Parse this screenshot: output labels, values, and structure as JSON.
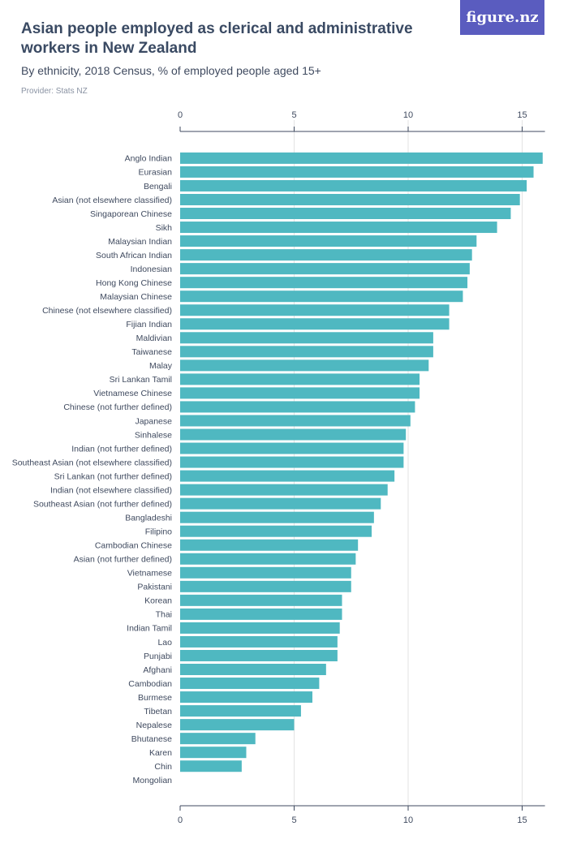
{
  "header": {
    "title": "Asian people employed as clerical and administrative workers in New Zealand",
    "subtitle": "By ethnicity, 2018 Census, % of employed people aged 15+",
    "provider": "Provider: Stats NZ",
    "logo": "figure.nz"
  },
  "colors": {
    "bar": "#4fb8c1",
    "grid": "#e3e3e3",
    "axis": "#3f4a5f",
    "logo_bg": "#5a5cbf"
  },
  "chart_data": {
    "type": "bar",
    "orientation": "horizontal",
    "title": "Asian people employed as clerical and administrative workers in New Zealand",
    "subtitle": "By ethnicity, 2018 Census, % of employed people aged 15+",
    "xlim": [
      0,
      16
    ],
    "xticks": [
      0,
      5,
      10,
      15
    ],
    "axis_position": "top and bottom",
    "grid": true,
    "categories": [
      "Anglo Indian",
      "Eurasian",
      "Bengali",
      "Asian (not elsewhere classified)",
      "Singaporean Chinese",
      "Sikh",
      "Malaysian Indian",
      "South African Indian",
      "Indonesian",
      "Hong Kong Chinese",
      "Malaysian Chinese",
      "Chinese (not elsewhere classified)",
      "Fijian Indian",
      "Maldivian",
      "Taiwanese",
      "Malay",
      "Sri Lankan Tamil",
      "Vietnamese Chinese",
      "Chinese (not further defined)",
      "Japanese",
      "Sinhalese",
      "Indian (not further defined)",
      "Southeast Asian (not elsewhere classified)",
      "Sri Lankan (not further defined)",
      "Indian (not elsewhere classified)",
      "Southeast Asian (not further defined)",
      "Bangladeshi",
      "Filipino",
      "Cambodian Chinese",
      "Asian (not further defined)",
      "Vietnamese",
      "Pakistani",
      "Korean",
      "Thai",
      "Indian Tamil",
      "Lao",
      "Punjabi",
      "Afghani",
      "Cambodian",
      "Burmese",
      "Tibetan",
      "Nepalese",
      "Bhutanese",
      "Karen",
      "Chin",
      "Mongolian"
    ],
    "values": [
      15.9,
      15.5,
      15.2,
      14.9,
      14.5,
      13.9,
      13.0,
      12.8,
      12.7,
      12.6,
      12.4,
      11.8,
      11.8,
      11.1,
      11.1,
      10.9,
      10.5,
      10.5,
      10.3,
      10.1,
      9.9,
      9.8,
      9.8,
      9.4,
      9.1,
      8.8,
      8.5,
      8.4,
      7.8,
      7.7,
      7.5,
      7.5,
      7.1,
      7.1,
      7.0,
      6.9,
      6.9,
      6.4,
      6.1,
      5.8,
      5.3,
      5.0,
      3.3,
      2.9,
      2.7,
      0
    ]
  }
}
